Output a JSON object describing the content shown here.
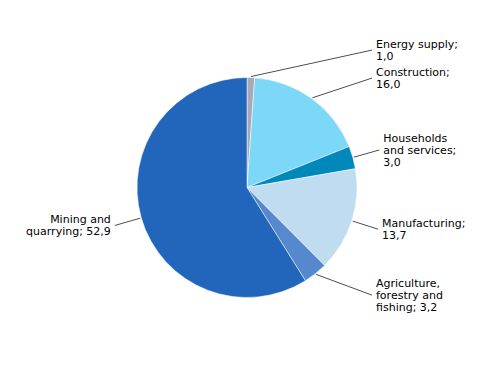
{
  "chart_data": {
    "type": "pie",
    "values": [
      1.0,
      16.0,
      3.0,
      13.7,
      3.2,
      52.9
    ],
    "value_labels": [
      "Energy supply;\n1,0",
      "Construction;\n16,0",
      "Households\nand services;\n3,0",
      "Manufacturing;\n13,7",
      "Agriculture,\nforestry and\nfishing; 3,2",
      "Mining and\nquarrying; 52,9"
    ],
    "colors": [
      "#a8a8b8",
      "#7dd8f8",
      "#0088bb",
      "#c0dcf0",
      "#5588cc",
      "#2266bb"
    ],
    "data_labels": true
  }
}
